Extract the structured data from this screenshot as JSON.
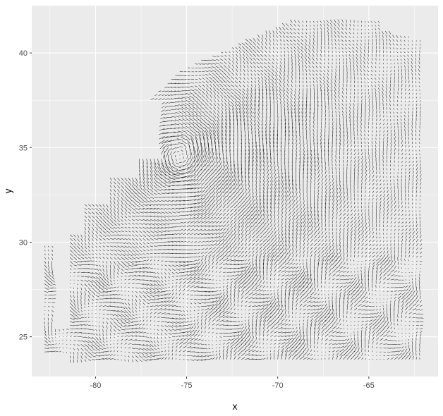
{
  "chart_data": {
    "type": "vector-field",
    "title": "",
    "xlabel": "x",
    "ylabel": "y",
    "xlim": [
      -83.5,
      -61.2
    ],
    "ylim": [
      22.9,
      42.5
    ],
    "x_ticks": [
      -80,
      -75,
      -70,
      -65
    ],
    "x_tick_labels": [
      "-80",
      "-75",
      "-70",
      "-65"
    ],
    "y_ticks": [
      25,
      30,
      35,
      40
    ],
    "y_tick_labels": [
      "25",
      "30",
      "35",
      "40"
    ],
    "grid": true,
    "legend": "none",
    "field": {
      "x_range": [
        -83,
        -62.2
      ],
      "y_range": [
        23.8,
        41.7
      ],
      "spacing": 0.2,
      "vortex_center": [
        -75.4,
        34.6
      ],
      "vortex_rotation": "counter-clockwise",
      "segment_color": "#000000"
    }
  },
  "colors": {
    "panel_background": "#ebebeb",
    "gridline": "#ffffff",
    "tick_mark": "#333333"
  }
}
